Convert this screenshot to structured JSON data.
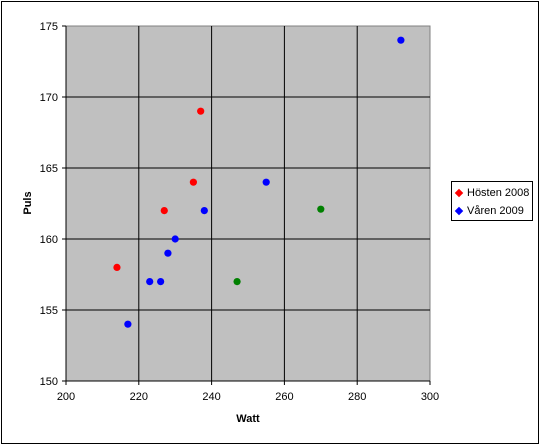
{
  "chart_data": {
    "type": "scatter",
    "xlabel": "Watt",
    "ylabel": "Puls",
    "xlim": [
      200,
      300
    ],
    "ylim": [
      150,
      175
    ],
    "x_ticks": [
      200,
      220,
      240,
      260,
      280,
      300
    ],
    "y_ticks": [
      150,
      155,
      160,
      165,
      170,
      175
    ],
    "grid": true,
    "legend_position": "right",
    "plot_background": "#c0c0c0",
    "series": [
      {
        "name": "Hösten 2008",
        "color": "#ff0000",
        "points": [
          {
            "x": 214,
            "y": 158
          },
          {
            "x": 227,
            "y": 162
          },
          {
            "x": 235,
            "y": 164
          },
          {
            "x": 237,
            "y": 169
          }
        ]
      },
      {
        "name": "Våren 2009",
        "color": "#0000ff",
        "points": [
          {
            "x": 217,
            "y": 154
          },
          {
            "x": 223,
            "y": 157
          },
          {
            "x": 226,
            "y": 157
          },
          {
            "x": 228,
            "y": 159
          },
          {
            "x": 230,
            "y": 160
          },
          {
            "x": 238,
            "y": 162
          },
          {
            "x": 255,
            "y": 164
          },
          {
            "x": 292,
            "y": 174
          }
        ]
      },
      {
        "color": "#008000",
        "points": [
          {
            "x": 247,
            "y": 157
          },
          {
            "x": 270,
            "y": 162.1
          }
        ]
      }
    ]
  }
}
